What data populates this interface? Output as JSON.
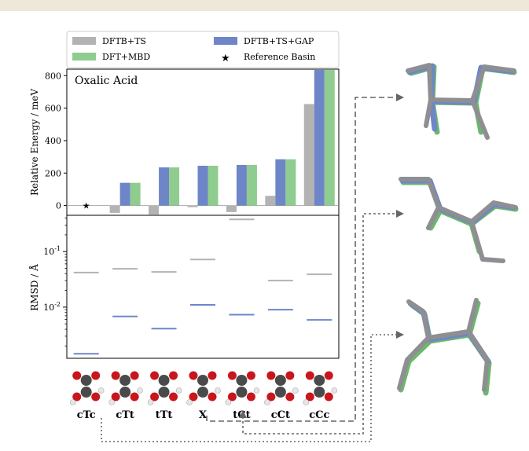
{
  "colors": {
    "dftb_ts": "#b3b3b3",
    "dftb_ts_gap": "#6e86c8",
    "dft_mbd": "#8fcc8f",
    "header_band": "#efe7d7"
  },
  "legend": {
    "items": [
      {
        "label": "DFTB+TS",
        "color": "#b3b3b3",
        "marker": "patch"
      },
      {
        "label": "DFTB+TS+GAP",
        "color": "#6e86c8",
        "marker": "patch"
      },
      {
        "label": "DFT+MBD",
        "color": "#8fcc8f",
        "marker": "patch"
      },
      {
        "label": "Reference Basin",
        "color": "#000000",
        "marker": "star"
      }
    ]
  },
  "chart_data": [
    {
      "type": "bar",
      "title": "Oxalic Acid",
      "ylabel": "Relative Energy / meV",
      "ylim": [
        -60,
        840
      ],
      "yticks": [
        0,
        200,
        400,
        600,
        800
      ],
      "categories": [
        "cTc",
        "cTt",
        "tTt",
        "X",
        "tCt",
        "cCt",
        "cCc"
      ],
      "series": [
        {
          "name": "DFTB+TS",
          "values": [
            0,
            -45,
            -55,
            -10,
            -40,
            60,
            625
          ]
        },
        {
          "name": "DFTB+TS+GAP",
          "values": [
            0,
            140,
            235,
            245,
            250,
            285,
            835
          ]
        },
        {
          "name": "DFT+MBD",
          "values": [
            0,
            140,
            235,
            245,
            250,
            285,
            835
          ]
        }
      ],
      "reference_basin": "cTc"
    },
    {
      "type": "scatter",
      "ylabel": "RMSD / Å",
      "yscale": "log",
      "ylim": [
        0.0012,
        0.45
      ],
      "ytick_labels": [
        "10^-2",
        "10^-1"
      ],
      "categories": [
        "cTc",
        "cTt",
        "tTt",
        "X",
        "tCt",
        "cCt",
        "cCc"
      ],
      "series": [
        {
          "name": "DFTB+TS",
          "values": [
            0.042,
            0.049,
            0.043,
            0.072,
            0.38,
            0.03,
            0.039
          ]
        },
        {
          "name": "DFTB+TS+GAP",
          "values": [
            0.00145,
            0.0068,
            0.0041,
            0.011,
            0.0073,
            0.009,
            0.0059
          ]
        }
      ]
    }
  ],
  "molecules": {
    "labels": [
      "cTc",
      "cTt",
      "tTt",
      "X",
      "tCt",
      "cCt",
      "cCc"
    ]
  }
}
